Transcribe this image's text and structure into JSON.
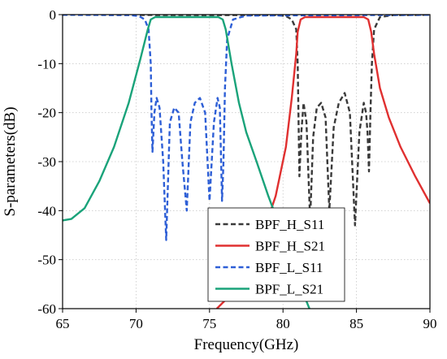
{
  "chart_data": {
    "type": "line",
    "xlabel": "Frequency(GHz)",
    "ylabel": "S-parameters(dB)",
    "xlim": [
      65,
      90
    ],
    "ylim": [
      -60,
      0
    ],
    "xticks": [
      65,
      70,
      75,
      80,
      85,
      90
    ],
    "yticks": [
      0,
      -10,
      -20,
      -30,
      -40,
      -50,
      -60
    ],
    "grid": true,
    "legend_position": "bottom-right",
    "series": [
      {
        "name": "BPF_H_S11",
        "color": "#3a3a3a",
        "style": "dash",
        "points": [
          [
            65,
            -0.05
          ],
          [
            79.5,
            -0.1
          ],
          [
            80.2,
            -0.3
          ],
          [
            80.6,
            -1.0
          ],
          [
            80.9,
            -3
          ],
          [
            81.0,
            -10
          ],
          [
            81.05,
            -20
          ],
          [
            81.12,
            -33
          ],
          [
            81.25,
            -24
          ],
          [
            81.4,
            -18
          ],
          [
            81.6,
            -22
          ],
          [
            81.85,
            -42
          ],
          [
            82.05,
            -25
          ],
          [
            82.3,
            -19
          ],
          [
            82.6,
            -18
          ],
          [
            82.9,
            -21
          ],
          [
            83.15,
            -40
          ],
          [
            83.45,
            -23
          ],
          [
            83.8,
            -18
          ],
          [
            84.2,
            -16
          ],
          [
            84.55,
            -20
          ],
          [
            84.9,
            -43
          ],
          [
            85.2,
            -24
          ],
          [
            85.5,
            -18
          ],
          [
            85.65,
            -20
          ],
          [
            85.75,
            -24
          ],
          [
            85.85,
            -32
          ],
          [
            85.95,
            -20
          ],
          [
            86.05,
            -10
          ],
          [
            86.2,
            -3
          ],
          [
            86.6,
            -0.5
          ],
          [
            87.5,
            -0.1
          ],
          [
            90,
            -0.05
          ]
        ]
      },
      {
        "name": "BPF_H_S21",
        "color": "#e03030",
        "style": "solid",
        "points": [
          [
            75.5,
            -60
          ],
          [
            76.5,
            -57
          ],
          [
            77.5,
            -53
          ],
          [
            78.5,
            -46
          ],
          [
            79.5,
            -37
          ],
          [
            80.2,
            -27
          ],
          [
            80.6,
            -17
          ],
          [
            80.9,
            -8
          ],
          [
            81.0,
            -3.5
          ],
          [
            81.2,
            -1.0
          ],
          [
            81.5,
            -0.5
          ],
          [
            85.5,
            -0.5
          ],
          [
            85.8,
            -1.0
          ],
          [
            86.0,
            -3.5
          ],
          [
            86.2,
            -8
          ],
          [
            86.6,
            -15
          ],
          [
            87.2,
            -21
          ],
          [
            88.0,
            -27
          ],
          [
            89.0,
            -33
          ],
          [
            90,
            -38.5
          ]
        ]
      },
      {
        "name": "BPF_L_S11",
        "color": "#2e5fd6",
        "style": "dash",
        "points": [
          [
            65,
            -0.05
          ],
          [
            69.5,
            -0.1
          ],
          [
            70.2,
            -0.3
          ],
          [
            70.6,
            -1.0
          ],
          [
            70.85,
            -3
          ],
          [
            71.0,
            -10
          ],
          [
            71.05,
            -20
          ],
          [
            71.12,
            -28
          ],
          [
            71.25,
            -20
          ],
          [
            71.4,
            -17
          ],
          [
            71.6,
            -19
          ],
          [
            71.85,
            -30
          ],
          [
            72.05,
            -46
          ],
          [
            72.3,
            -22
          ],
          [
            72.6,
            -19
          ],
          [
            72.9,
            -20
          ],
          [
            73.15,
            -30
          ],
          [
            73.45,
            -40
          ],
          [
            73.7,
            -22
          ],
          [
            74.0,
            -18
          ],
          [
            74.35,
            -17
          ],
          [
            74.7,
            -20
          ],
          [
            75.0,
            -38
          ],
          [
            75.3,
            -22
          ],
          [
            75.55,
            -17
          ],
          [
            75.7,
            -19
          ],
          [
            75.85,
            -38
          ],
          [
            75.95,
            -30
          ],
          [
            76.05,
            -15
          ],
          [
            76.2,
            -5
          ],
          [
            76.6,
            -1
          ],
          [
            77.5,
            -0.2
          ],
          [
            90,
            -0.05
          ]
        ]
      },
      {
        "name": "BPF_L_S21",
        "color": "#1aa37a",
        "style": "solid",
        "points": [
          [
            65,
            -42
          ],
          [
            65.6,
            -41.7
          ],
          [
            66.5,
            -39.5
          ],
          [
            67.5,
            -34
          ],
          [
            68.5,
            -27
          ],
          [
            69.5,
            -18
          ],
          [
            70.3,
            -9
          ],
          [
            70.8,
            -3
          ],
          [
            71.0,
            -1.0
          ],
          [
            71.3,
            -0.5
          ],
          [
            75.6,
            -0.5
          ],
          [
            75.9,
            -1.0
          ],
          [
            76.1,
            -3
          ],
          [
            76.5,
            -10
          ],
          [
            77.0,
            -18
          ],
          [
            77.5,
            -24
          ],
          [
            78.2,
            -30
          ],
          [
            79.0,
            -37
          ],
          [
            80.0,
            -45
          ],
          [
            81.0,
            -54
          ],
          [
            81.8,
            -60
          ]
        ]
      }
    ]
  }
}
